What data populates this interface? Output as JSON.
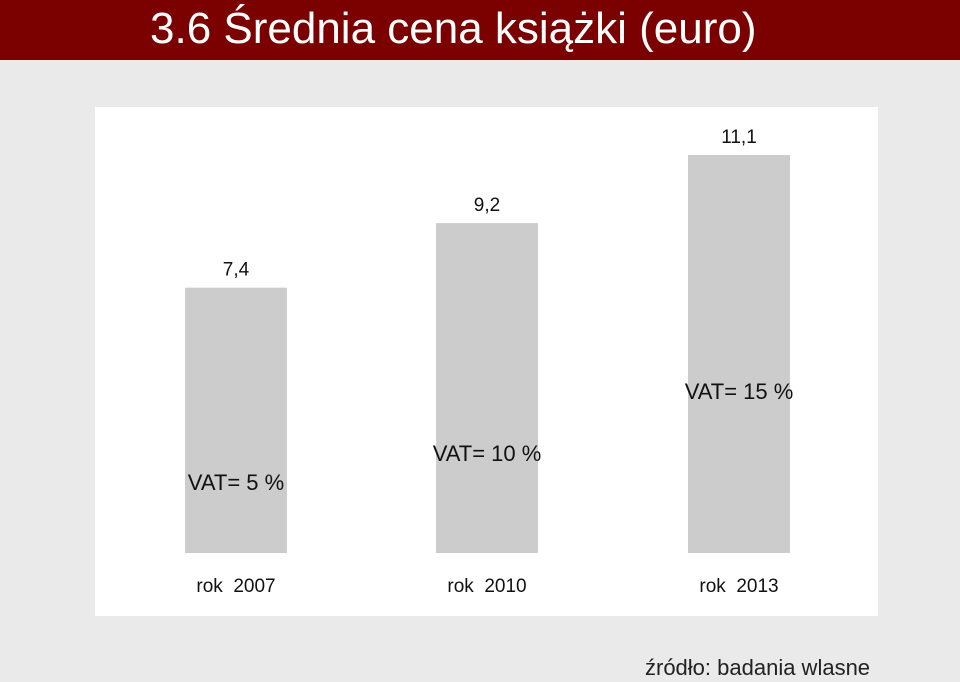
{
  "page": {
    "title": "3.6 Średnia cena książki (euro)",
    "source": "źródło: badania wlasne"
  },
  "colors": {
    "title_bar": "#7b0000",
    "bar": "#cccccc",
    "panel": "#ffffff",
    "background": "#eaeaea"
  },
  "chart_data": {
    "type": "bar",
    "title": "3.6 Średnia cena książki (euro)",
    "categories": [
      "rok  2007",
      "rok  2010",
      "rok  2013"
    ],
    "values": [
      7.4,
      9.2,
      11.1
    ],
    "value_labels": [
      "7,4",
      "9,2",
      "11,1"
    ],
    "annotations": [
      "VAT= 5 %",
      "VAT= 10 %",
      "VAT= 15 %"
    ],
    "ylim": [
      0,
      11.1
    ],
    "grid": false,
    "legend": "none"
  }
}
